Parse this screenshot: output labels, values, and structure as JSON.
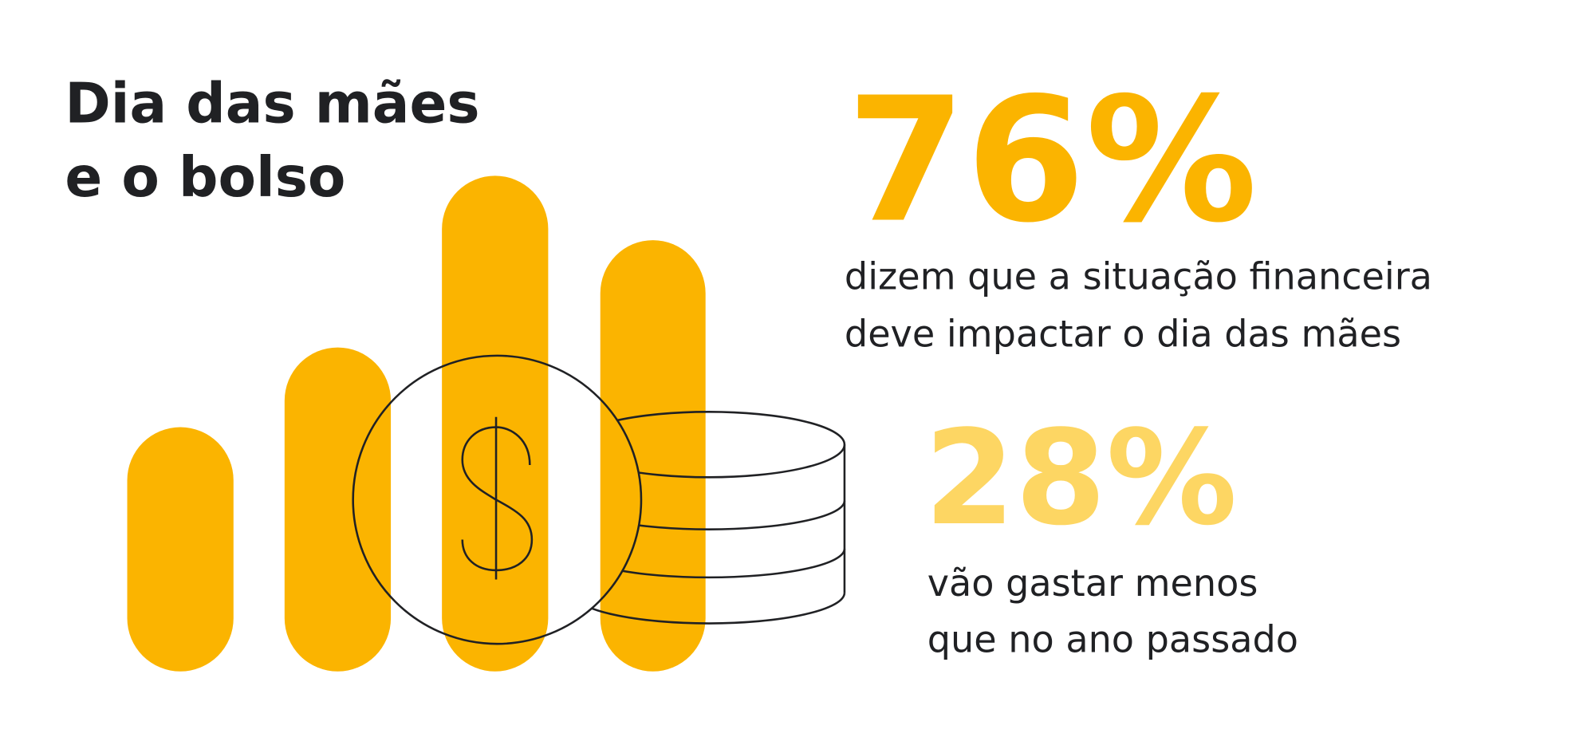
{
  "title": [
    "Dia das mães",
    "e o bolso"
  ],
  "stats": [
    {
      "value": "76%",
      "text": [
        "dizem que a situação financeira",
        "deve impactar o dia das mães"
      ]
    },
    {
      "value": "28%",
      "text": [
        "vão gastar menos",
        "que no ano passado"
      ]
    }
  ]
}
